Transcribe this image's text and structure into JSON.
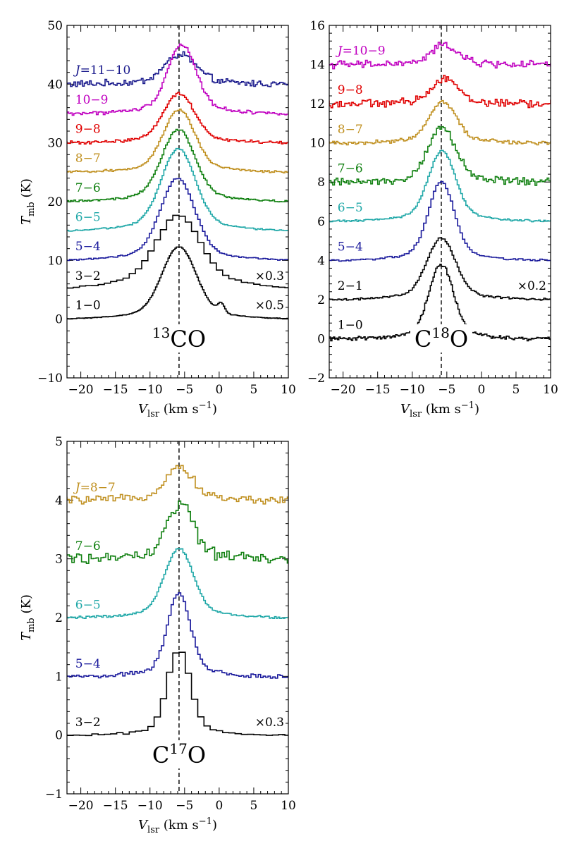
{
  "chart_data": [
    {
      "type": "line",
      "id": "panel-13co",
      "title": "13CO",
      "molecule": {
        "sup": "13",
        "base": "CO"
      },
      "xlabel": "V_lsr (km s^-1)",
      "xlabel_main": "V",
      "xlabel_sub": "lsr",
      "xlabel_units": " (km s",
      "xlabel_units_sup": "−1",
      "xlabel_units_close": ")",
      "ylabel": "T_mb (K)",
      "ylabel_main": "T",
      "ylabel_sub": "mb",
      "ylabel_units": " (K)",
      "xlim": [
        -22,
        10
      ],
      "ylim": [
        -10,
        50
      ],
      "xticks": [
        -20,
        -15,
        -10,
        -5,
        0,
        5,
        10
      ],
      "xtick_labels": [
        "−20",
        "−15",
        "−10",
        "−5",
        "0",
        "5",
        "10"
      ],
      "yticks": [
        -10,
        0,
        10,
        20,
        30,
        40,
        50
      ],
      "ytick_labels": [
        "−10",
        "0",
        "10",
        "20",
        "30",
        "40",
        "50"
      ],
      "vline_x": -5.8,
      "series": [
        {
          "name": "J=11−10",
          "label_prefix": "J",
          "label_rest": "=11−10",
          "color": "#1a1a8c",
          "offset": 40,
          "peak_height": 4.5,
          "center": -5.6,
          "width": 2.2,
          "noise": 0.45,
          "step": 0.25,
          "label_x": -20.8,
          "label_y": 41.7
        },
        {
          "name": "10−9",
          "color": "#c000c0",
          "offset": 35,
          "peak_height": 10.5,
          "center": -5.4,
          "width": 2.0,
          "noise": 0.25,
          "step": 0.25,
          "label_x": -20.8,
          "label_y": 36.7
        },
        {
          "name": "9−8",
          "color": "#e00000",
          "offset": 30,
          "peak_height": 7.5,
          "center": -5.8,
          "width": 2.2,
          "noise": 0.2,
          "step": 0.25,
          "label_x": -20.8,
          "label_y": 31.7
        },
        {
          "name": "8−7",
          "color": "#c09020",
          "offset": 25,
          "peak_height": 9.5,
          "center": -5.8,
          "width": 2.2,
          "noise": 0.15,
          "step": 0.25,
          "label_x": -20.8,
          "label_y": 26.7
        },
        {
          "name": "7−6",
          "color": "#108010",
          "offset": 20,
          "peak_height": 11,
          "center": -5.9,
          "width": 2.3,
          "noise": 0.15,
          "step": 0.25,
          "label_x": -20.8,
          "label_y": 21.7
        },
        {
          "name": "6−5",
          "color": "#20a8a8",
          "offset": 15,
          "peak_height": 12.5,
          "center": -5.9,
          "width": 2.4,
          "noise": 0.1,
          "step": 0.25,
          "label_x": -20.8,
          "label_y": 16.7
        },
        {
          "name": "5−4",
          "color": "#1a1a9c",
          "offset": 10,
          "peak_height": 12.5,
          "center": -6.0,
          "width": 2.4,
          "noise": 0.1,
          "step": 0.35,
          "label_x": -20.8,
          "label_y": 11.7
        },
        {
          "name": "3−2",
          "color": "#000000",
          "offset": 5,
          "peak_height": 10,
          "center": -5.9,
          "width": 3.0,
          "noise": 0.1,
          "step": 0.9,
          "wing": 1.5,
          "label_x": -20.8,
          "label_y": 6.7,
          "scale_label": "×0.3"
        },
        {
          "name": "1−0",
          "color": "#000000",
          "offset": 0,
          "peak_height": 11,
          "center": -5.8,
          "width": 2.4,
          "noise": 0.05,
          "step": 0.2,
          "bump_center": 0.3,
          "bump_height": 1.5,
          "label_x": -20.8,
          "label_y": 1.7,
          "scale_label": "×0.5"
        }
      ]
    },
    {
      "type": "line",
      "id": "panel-c18o",
      "title": "C18O",
      "molecule": {
        "pre": "C",
        "sup": "18",
        "base": "O"
      },
      "xlabel": "V_lsr (km s^-1)",
      "xlabel_main": "V",
      "xlabel_sub": "lsr",
      "xlabel_units": " (km s",
      "xlabel_units_sup": "−1",
      "xlabel_units_close": ")",
      "xlim": [
        -22,
        10
      ],
      "ylim": [
        -2,
        16
      ],
      "xticks": [
        -20,
        -15,
        -10,
        -5,
        0,
        5,
        10
      ],
      "xtick_labels": [
        "−20",
        "−15",
        "−10",
        "−5",
        "0",
        "5",
        "10"
      ],
      "yticks": [
        -2,
        0,
        2,
        4,
        6,
        8,
        10,
        12,
        14,
        16
      ],
      "ytick_labels": [
        "−2",
        "0",
        "2",
        "4",
        "6",
        "8",
        "10",
        "12",
        "14",
        "16"
      ],
      "vline_x": -5.8,
      "series": [
        {
          "name": "J=10−9",
          "label_prefix": "J",
          "label_rest": "=10−9",
          "color": "#c000c0",
          "offset": 14,
          "peak_height": 0.9,
          "center": -5.3,
          "width": 1.8,
          "noise": 0.15,
          "step": 0.25,
          "label_x": -20.8,
          "label_y": 14.5
        },
        {
          "name": "9−8",
          "color": "#e00000",
          "offset": 12,
          "peak_height": 1.2,
          "center": -5.3,
          "width": 1.8,
          "noise": 0.15,
          "step": 0.25,
          "label_x": -20.8,
          "label_y": 12.5
        },
        {
          "name": "8−7",
          "color": "#c09020",
          "offset": 10,
          "peak_height": 1.9,
          "center": -5.6,
          "width": 1.9,
          "noise": 0.08,
          "step": 0.25,
          "label_x": -20.8,
          "label_y": 10.5
        },
        {
          "name": "7−6",
          "color": "#108010",
          "offset": 8,
          "peak_height": 2.5,
          "center": -5.7,
          "width": 1.9,
          "noise": 0.15,
          "step": 0.25,
          "label_x": -20.8,
          "label_y": 8.5
        },
        {
          "name": "6−5",
          "color": "#20a8a8",
          "offset": 6,
          "peak_height": 3.2,
          "center": -5.7,
          "width": 1.9,
          "noise": 0.04,
          "step": 0.25,
          "label_x": -20.8,
          "label_y": 6.5
        },
        {
          "name": "5−4",
          "color": "#1a1a9c",
          "offset": 4,
          "peak_height": 3.6,
          "center": -5.8,
          "width": 1.8,
          "noise": 0.04,
          "step": 0.35,
          "label_x": -20.8,
          "label_y": 4.5
        },
        {
          "name": "2−1",
          "color": "#000000",
          "offset": 2,
          "peak_height": 2.8,
          "center": -5.8,
          "width": 2.0,
          "noise": 0.04,
          "step": 0.25,
          "label_x": -20.8,
          "label_y": 2.5,
          "scale_label": "×0.2"
        },
        {
          "name": "1−0",
          "color": "#000000",
          "offset": 0,
          "peak_height": 3.4,
          "center": -5.8,
          "width": 1.7,
          "noise": 0.08,
          "step": 0.2,
          "label_x": -20.8,
          "label_y": 0.5
        }
      ]
    },
    {
      "type": "line",
      "id": "panel-c17o",
      "title": "C17O",
      "molecule": {
        "pre": "C",
        "sup": "17",
        "base": "O"
      },
      "xlabel": "V_lsr (km s^-1)",
      "xlabel_main": "V",
      "xlabel_sub": "lsr",
      "xlabel_units": " (km s",
      "xlabel_units_sup": "−1",
      "xlabel_units_close": ")",
      "ylabel": "T_mb (K)",
      "ylabel_main": "T",
      "ylabel_sub": "mb",
      "ylabel_units": " (K)",
      "xlim": [
        -22,
        10
      ],
      "ylim": [
        -1,
        5
      ],
      "xticks": [
        -20,
        -15,
        -10,
        -5,
        0,
        5,
        10
      ],
      "xtick_labels": [
        "−20",
        "−15",
        "−10",
        "−5",
        "0",
        "5",
        "10"
      ],
      "yticks": [
        -1,
        0,
        1,
        2,
        3,
        4,
        5
      ],
      "ytick_labels": [
        "−1",
        "0",
        "1",
        "2",
        "3",
        "4",
        "5"
      ],
      "vline_x": -5.8,
      "series": [
        {
          "name": "J=8−7",
          "label_prefix": "J",
          "label_rest": "=8−7",
          "color": "#c09020",
          "offset": 4,
          "peak_height": 0.5,
          "center": -5.8,
          "width": 2.0,
          "noise": 0.05,
          "step": 0.35,
          "label_x": -20.8,
          "label_y": 4.15
        },
        {
          "name": "7−6",
          "color": "#108010",
          "offset": 3,
          "peak_height": 0.85,
          "center": -5.6,
          "width": 1.8,
          "noise": 0.08,
          "step": 0.35,
          "label_x": -20.8,
          "label_y": 3.15
        },
        {
          "name": "6−5",
          "color": "#20a8a8",
          "offset": 2,
          "peak_height": 1.05,
          "center": -5.8,
          "width": 2.0,
          "noise": 0.015,
          "step": 0.25,
          "label_x": -20.8,
          "label_y": 2.15
        },
        {
          "name": "5−4",
          "color": "#1a1a9c",
          "offset": 1,
          "peak_height": 1.25,
          "center": -5.8,
          "width": 1.6,
          "noise": 0.03,
          "step": 0.35,
          "label_x": -20.8,
          "label_y": 1.15
        },
        {
          "name": "3−2",
          "color": "#000000",
          "offset": 0,
          "peak_height": 1.3,
          "center": -5.8,
          "width": 1.6,
          "noise": 0.015,
          "step": 0.9,
          "label_x": -20.8,
          "label_y": 0.15,
          "scale_label": "×0.3"
        }
      ]
    }
  ]
}
